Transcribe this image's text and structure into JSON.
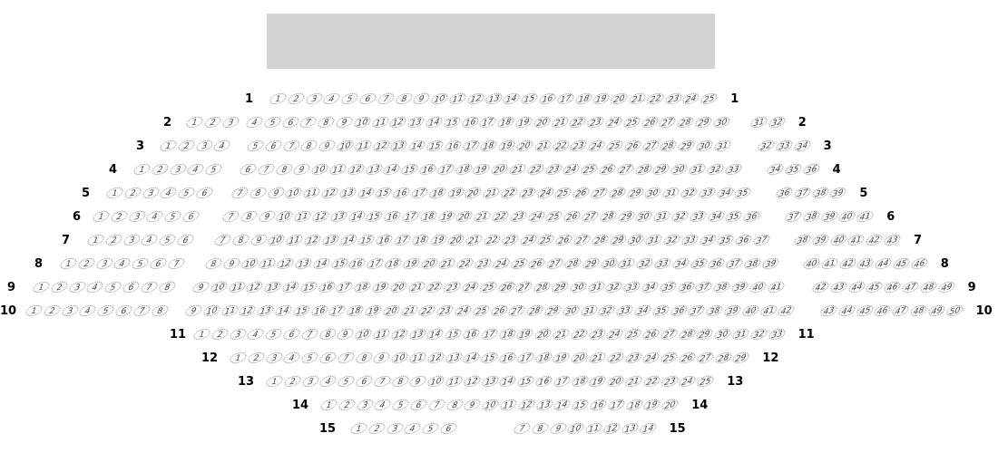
{
  "stage": {
    "color": "#d3d3d3"
  },
  "seat_style": {
    "border_color": "#888888",
    "text_color": "#444444"
  },
  "rows": [
    {
      "label": "1",
      "sections": [
        [
          1,
          25
        ]
      ]
    },
    {
      "label": "2",
      "sections": [
        [
          1,
          3
        ],
        [
          4,
          30
        ],
        [
          31,
          32
        ]
      ]
    },
    {
      "label": "3",
      "sections": [
        [
          1,
          4
        ],
        [
          5,
          31
        ],
        [
          32,
          34
        ]
      ]
    },
    {
      "label": "4",
      "sections": [
        [
          1,
          5
        ],
        [
          6,
          33
        ],
        [
          34,
          36
        ]
      ]
    },
    {
      "label": "5",
      "sections": [
        [
          1,
          6
        ],
        [
          7,
          35
        ],
        [
          36,
          39
        ]
      ]
    },
    {
      "label": "6",
      "sections": [
        [
          1,
          6
        ],
        [
          7,
          36
        ],
        [
          37,
          41
        ]
      ]
    },
    {
      "label": "7",
      "sections": [
        [
          1,
          6
        ],
        [
          7,
          37
        ],
        [
          38,
          43
        ]
      ]
    },
    {
      "label": "8",
      "sections": [
        [
          1,
          7
        ],
        [
          8,
          39
        ],
        [
          40,
          46
        ]
      ]
    },
    {
      "label": "9",
      "sections": [
        [
          1,
          8
        ],
        [
          9,
          41
        ],
        [
          42,
          49
        ]
      ]
    },
    {
      "label": "10",
      "sections": [
        [
          1,
          8
        ],
        [
          9,
          42
        ],
        [
          43,
          50
        ]
      ]
    },
    {
      "label": "11",
      "sections": [
        [
          1,
          33
        ]
      ]
    },
    {
      "label": "12",
      "sections": [
        [
          1,
          29
        ]
      ]
    },
    {
      "label": "13",
      "sections": [
        [
          1,
          25
        ]
      ]
    },
    {
      "label": "14",
      "sections": [
        [
          1,
          20
        ]
      ]
    },
    {
      "label": "15",
      "sections": [
        [
          1,
          6
        ],
        [
          7,
          14
        ]
      ]
    }
  ]
}
